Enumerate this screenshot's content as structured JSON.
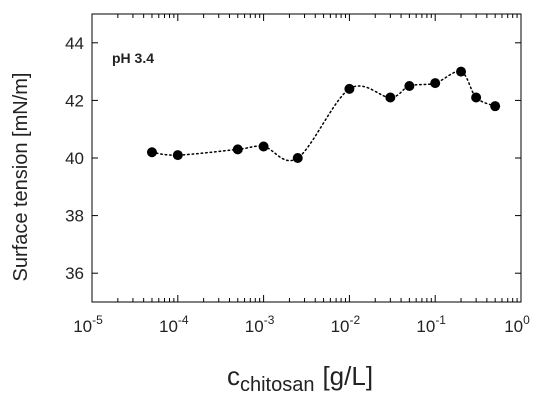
{
  "chart_data": {
    "type": "scatter",
    "annotation": "pH 3.4",
    "ylabel": "Surface tension [mN/m]",
    "xlabel": {
      "main": "c",
      "subscript": "chitosan",
      "unit": "[g/L]"
    },
    "x_scale": "log",
    "xlim": [
      1e-05,
      1
    ],
    "ylim": [
      35,
      45
    ],
    "x_ticks": [
      {
        "base": "10",
        "exp": "-5",
        "value": 1e-05
      },
      {
        "base": "10",
        "exp": "-4",
        "value": 0.0001
      },
      {
        "base": "10",
        "exp": "-3",
        "value": 0.001
      },
      {
        "base": "10",
        "exp": "-2",
        "value": 0.01
      },
      {
        "base": "10",
        "exp": "-1",
        "value": 0.1
      },
      {
        "base": "10",
        "exp": "0",
        "value": 1
      }
    ],
    "y_ticks": [
      36,
      38,
      40,
      42,
      44
    ],
    "grid": false,
    "series": [
      {
        "marker_color": "#000000",
        "line_style": "dotted",
        "x": [
          5e-05,
          0.0001,
          0.0005,
          0.001,
          0.0025,
          0.01,
          0.03,
          0.05,
          0.1,
          0.2,
          0.3,
          0.5
        ],
        "y": [
          40.2,
          40.1,
          40.3,
          40.4,
          40.0,
          42.4,
          42.1,
          42.5,
          42.6,
          43.0,
          42.1,
          41.8
        ]
      }
    ]
  }
}
